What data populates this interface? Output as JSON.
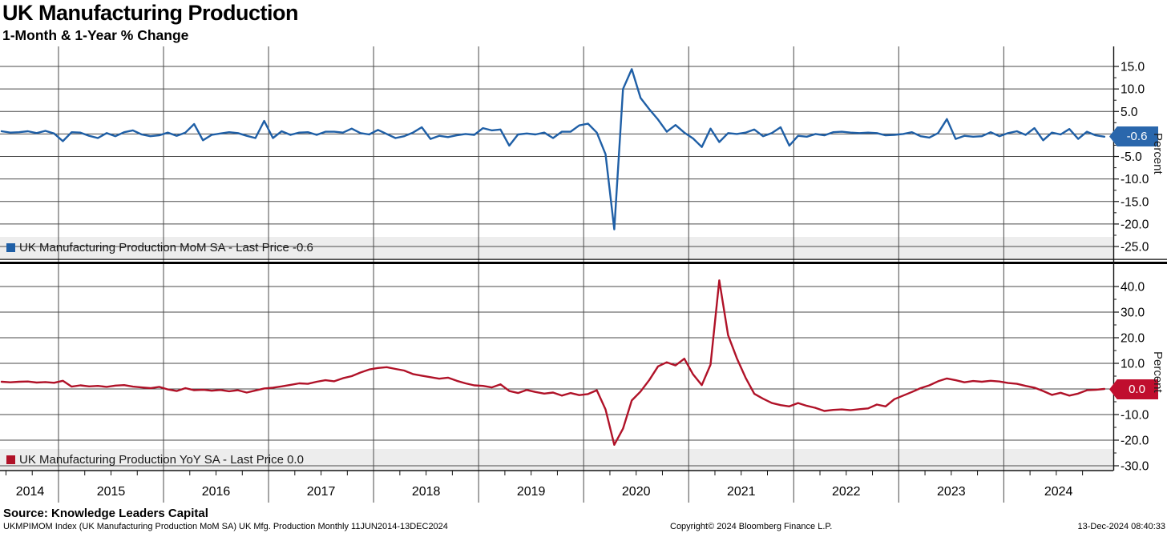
{
  "header": {
    "title": "UK Manufacturing Production",
    "subtitle": "1-Month & 1-Year % Change"
  },
  "x_axis": {
    "year_labels": [
      "2014",
      "2015",
      "2016",
      "2017",
      "2018",
      "2019",
      "2020",
      "2021",
      "2022",
      "2023",
      "2024"
    ]
  },
  "chart_data": [
    {
      "type": "line",
      "name": "UK Manufacturing Production MoM SA",
      "legend": "UK Manufacturing Production MoM SA - Last Price -0.6",
      "last_price": "-0.6",
      "color": "#1F5FA6",
      "badge_color": "#2A67AC",
      "ylabel": "Percent",
      "frequency": "monthly",
      "x_start": "2014-06",
      "x_end": "2024-12",
      "ylim": [
        -27.5,
        19.0
      ],
      "ytick_labels": [
        15.0,
        10.0,
        5.0,
        -5.0,
        -10.0,
        -15.0,
        -20.0,
        -25.0
      ],
      "gridlines": [
        15,
        10,
        5,
        0,
        -5,
        -10,
        -15,
        -20,
        -25
      ],
      "legend_position": "bottom-left",
      "grid": true,
      "values": [
        0.6,
        0.3,
        0.4,
        0.6,
        0.2,
        0.7,
        0.1,
        -1.6,
        0.4,
        0.3,
        -0.4,
        -0.9,
        0.2,
        -0.5,
        0.4,
        0.8,
        -0.1,
        -0.5,
        -0.3,
        0.3,
        -0.4,
        0.3,
        2.2,
        -1.4,
        -0.2,
        0.1,
        0.4,
        0.2,
        -0.4,
        -0.9,
        2.9,
        -0.9,
        0.6,
        -0.2,
        0.3,
        0.4,
        -0.2,
        0.5,
        0.5,
        0.3,
        1.2,
        0.2,
        -0.1,
        0.9,
        0.0,
        -0.9,
        -0.5,
        0.3,
        1.5,
        -1.1,
        -0.4,
        -0.7,
        -0.3,
        0.0,
        -0.2,
        1.3,
        0.8,
        1.0,
        -2.6,
        -0.1,
        0.1,
        -0.1,
        0.3,
        -0.9,
        0.5,
        0.5,
        1.9,
        2.3,
        0.3,
        -4.5,
        -21.2,
        10.0,
        14.4,
        8.0,
        5.5,
        3.2,
        0.5,
        2.0,
        0.3,
        -1.0,
        -2.9,
        1.2,
        -1.8,
        0.2,
        0.0,
        0.3,
        1.0,
        -0.5,
        0.2,
        1.5,
        -2.6,
        -0.4,
        -0.6,
        0.0,
        -0.3,
        0.4,
        0.5,
        0.3,
        0.2,
        0.3,
        0.2,
        -0.3,
        -0.2,
        0.0,
        0.4,
        -0.5,
        -0.8,
        0.2,
        3.3,
        -1.1,
        -0.4,
        -0.6,
        -0.5,
        0.4,
        -0.5,
        0.2,
        0.6,
        -0.2,
        1.3,
        -1.4,
        0.3,
        -0.1,
        1.1,
        -1.1,
        0.5,
        -0.3,
        -0.6
      ]
    },
    {
      "type": "line",
      "name": "UK Manufacturing Production YoY SA",
      "legend": "UK Manufacturing Production YoY SA - Last Price 0.0",
      "last_price": "0.0",
      "color": "#B01228",
      "badge_color": "#C00E2E",
      "ylabel": "Percent",
      "frequency": "monthly",
      "x_start": "2014-06",
      "x_end": "2024-12",
      "ylim": [
        -35.0,
        48.0
      ],
      "ytick_labels": [
        40.0,
        30.0,
        20.0,
        10.0,
        0.0,
        -10.0,
        -20.0,
        -30.0
      ],
      "gridlines": [
        40,
        30,
        20,
        10,
        0,
        -10,
        -20,
        -30
      ],
      "legend_position": "bottom-left",
      "grid": true,
      "values": [
        2.8,
        2.6,
        2.8,
        2.9,
        2.5,
        2.7,
        2.4,
        3.2,
        0.9,
        1.4,
        1.0,
        1.2,
        0.8,
        1.3,
        1.5,
        0.9,
        0.6,
        0.3,
        0.8,
        -0.2,
        -0.8,
        0.3,
        -0.5,
        -0.3,
        -0.7,
        -0.4,
        -0.9,
        -0.5,
        -1.4,
        -0.6,
        0.2,
        0.5,
        1.0,
        1.6,
        2.2,
        2.0,
        2.8,
        3.4,
        3.0,
        4.2,
        5.0,
        6.4,
        7.6,
        8.2,
        8.5,
        7.8,
        7.2,
        5.8,
        5.2,
        4.6,
        4.0,
        4.4,
        3.2,
        2.2,
        1.4,
        1.2,
        0.6,
        1.8,
        -0.8,
        -1.6,
        -0.4,
        -1.2,
        -1.8,
        -1.4,
        -2.6,
        -1.6,
        -2.4,
        -2.0,
        -0.5,
        -8.0,
        -21.8,
        -15.5,
        -4.5,
        -1.0,
        3.5,
        8.8,
        10.4,
        9.2,
        11.8,
        5.7,
        1.5,
        9.5,
        42.4,
        21.0,
        12.0,
        4.4,
        -1.9,
        -3.8,
        -5.5,
        -6.3,
        -6.8,
        -5.5,
        -6.6,
        -7.4,
        -8.6,
        -8.2,
        -8.0,
        -8.3,
        -7.9,
        -7.6,
        -6.1,
        -6.8,
        -4.0,
        -2.6,
        -1.2,
        0.3,
        1.4,
        3.0,
        4.1,
        3.4,
        2.6,
        3.1,
        2.8,
        3.2,
        2.9,
        2.3,
        2.0,
        1.2,
        0.5,
        -0.8,
        -2.3,
        -1.5,
        -2.6,
        -1.8,
        -0.5,
        -0.3,
        0.0
      ]
    }
  ],
  "footer": {
    "source": "Source: Knowledge Leaders Capital",
    "ticker_line": "UKMPIMOM Index (UK Manufacturing Production MoM SA) UK Mfg. Production  Monthly 11JUN2014-13DEC2024",
    "copyright": "Copyright© 2024 Bloomberg Finance L.P.",
    "datetime": "13-Dec-2024 08:40:33"
  }
}
